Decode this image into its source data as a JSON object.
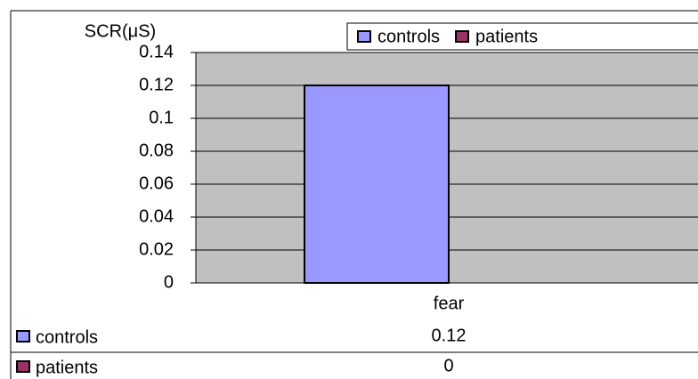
{
  "chart_data": {
    "type": "bar",
    "y_label": "SCR(μS)",
    "categories": [
      "fear"
    ],
    "series": [
      {
        "name": "controls",
        "color": "#9999ff",
        "values": [
          0.12
        ]
      },
      {
        "name": "patients",
        "color": "#993366",
        "values": [
          0
        ]
      }
    ],
    "ylim": [
      0,
      0.14
    ],
    "yticks": [
      0,
      0.02,
      0.04,
      0.06,
      0.08,
      0.1,
      0.12,
      0.14
    ],
    "grid": true,
    "legend": "top-right",
    "plot_background": "#c0c0c0"
  }
}
